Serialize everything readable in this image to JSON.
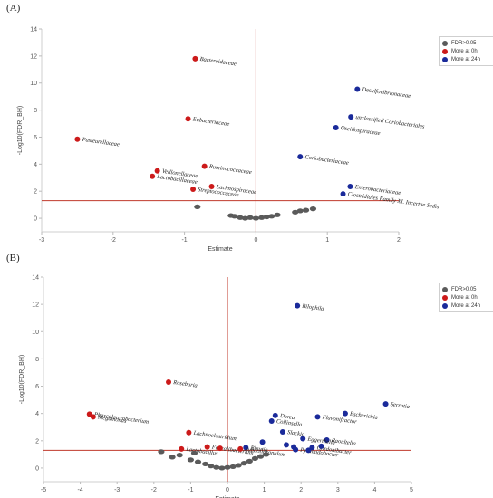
{
  "chart_data": [
    {
      "type": "scatter",
      "panel_label": "(A)",
      "xlabel": "Estimate",
      "ylabel": "-Log10(FDR_BH)",
      "xlim": [
        -3,
        2
      ],
      "ylim": [
        -1,
        14
      ],
      "xticks": [
        -3,
        -2,
        -1,
        0,
        1,
        2
      ],
      "yticks": [
        0,
        2,
        4,
        6,
        8,
        10,
        12,
        14
      ],
      "threshold_y": 1.3,
      "vline_x": 0,
      "legend_position": "top-right",
      "legend": [
        {
          "key": "ns",
          "label": "FDR>0.05",
          "color": "#5a5a5a"
        },
        {
          "key": "h0",
          "label": "More at 0h",
          "color": "#cc1a1a"
        },
        {
          "key": "h24",
          "label": "More at 24h",
          "color": "#1a2a9a"
        }
      ],
      "points": [
        {
          "x": -0.85,
          "y": 11.8,
          "group": "h0",
          "label": "Bacteroidaceae"
        },
        {
          "x": -0.95,
          "y": 7.35,
          "group": "h0",
          "label": "Eubacteriaceae"
        },
        {
          "x": -2.5,
          "y": 5.85,
          "group": "h0",
          "label": "Pasteurellaceae"
        },
        {
          "x": -0.72,
          "y": 3.85,
          "group": "h0",
          "label": "Ruminococcaceae"
        },
        {
          "x": -1.38,
          "y": 3.5,
          "group": "h0",
          "label": "Veillonellaceae"
        },
        {
          "x": -1.45,
          "y": 3.1,
          "group": "h0",
          "label": "Lactobacillaceae"
        },
        {
          "x": -0.62,
          "y": 2.35,
          "group": "h0",
          "label": "Lachnospiraceae"
        },
        {
          "x": -0.88,
          "y": 2.15,
          "group": "h0",
          "label": "Streptococcaceae"
        },
        {
          "x": 1.42,
          "y": 9.55,
          "group": "h24",
          "label": "Desulfovibrionaceae"
        },
        {
          "x": 1.33,
          "y": 7.5,
          "group": "h24",
          "label": "unclassified Coriobacteriales"
        },
        {
          "x": 1.12,
          "y": 6.7,
          "group": "h24",
          "label": "Oscillospiraceae"
        },
        {
          "x": 0.62,
          "y": 4.55,
          "group": "h24",
          "label": "Coriobacteriaceae"
        },
        {
          "x": 1.32,
          "y": 2.35,
          "group": "h24",
          "label": "Enterobacteriaceae"
        },
        {
          "x": 1.22,
          "y": 1.8,
          "group": "h24",
          "label": "Clostridiales Family XI. Incertae Sedis"
        },
        {
          "x": -0.82,
          "y": 0.85,
          "group": "ns",
          "label": ""
        },
        {
          "x": -0.35,
          "y": 0.2,
          "group": "ns",
          "label": ""
        },
        {
          "x": -0.3,
          "y": 0.15,
          "group": "ns",
          "label": ""
        },
        {
          "x": -0.22,
          "y": 0.05,
          "group": "ns",
          "label": ""
        },
        {
          "x": -0.15,
          "y": 0.0,
          "group": "ns",
          "label": ""
        },
        {
          "x": -0.08,
          "y": 0.05,
          "group": "ns",
          "label": ""
        },
        {
          "x": 0.0,
          "y": 0.0,
          "group": "ns",
          "label": ""
        },
        {
          "x": 0.08,
          "y": 0.05,
          "group": "ns",
          "label": ""
        },
        {
          "x": 0.15,
          "y": 0.1,
          "group": "ns",
          "label": ""
        },
        {
          "x": 0.22,
          "y": 0.15,
          "group": "ns",
          "label": ""
        },
        {
          "x": 0.3,
          "y": 0.25,
          "group": "ns",
          "label": ""
        },
        {
          "x": 0.55,
          "y": 0.45,
          "group": "ns",
          "label": ""
        },
        {
          "x": 0.62,
          "y": 0.55,
          "group": "ns",
          "label": ""
        },
        {
          "x": 0.7,
          "y": 0.6,
          "group": "ns",
          "label": ""
        },
        {
          "x": 0.8,
          "y": 0.7,
          "group": "ns",
          "label": ""
        }
      ]
    },
    {
      "type": "scatter",
      "panel_label": "(B)",
      "xlabel": "Estimate",
      "ylabel": "-Log10(FDR_BH)",
      "xlim": [
        -5,
        5
      ],
      "ylim": [
        -1,
        14
      ],
      "xticks": [
        -5,
        -4,
        -3,
        -2,
        -1,
        0,
        1,
        2,
        3,
        4,
        5
      ],
      "yticks": [
        0,
        2,
        4,
        6,
        8,
        10,
        12,
        14
      ],
      "threshold_y": 1.3,
      "vline_x": 0,
      "legend_position": "top-right",
      "legend": [
        {
          "key": "ns",
          "label": "FDR>0.05",
          "color": "#5a5a5a"
        },
        {
          "key": "h0",
          "label": "More at 0h",
          "color": "#cc1a1a"
        },
        {
          "key": "h24",
          "label": "More at 24h",
          "color": "#1a2a9a"
        }
      ],
      "points": [
        {
          "x": 1.9,
          "y": 11.9,
          "group": "h24",
          "label": "Bilophila"
        },
        {
          "x": 4.3,
          "y": 4.7,
          "group": "h24",
          "label": "Serratia"
        },
        {
          "x": 3.2,
          "y": 4.0,
          "group": "h24",
          "label": "Escherichia"
        },
        {
          "x": 1.3,
          "y": 3.85,
          "group": "h24",
          "label": "Dorea"
        },
        {
          "x": 2.45,
          "y": 3.75,
          "group": "h24",
          "label": "Flavonifractor"
        },
        {
          "x": 1.2,
          "y": 3.45,
          "group": "h24",
          "label": "Collinsella"
        },
        {
          "x": 1.5,
          "y": 2.65,
          "group": "h24",
          "label": "Slackia"
        },
        {
          "x": 2.7,
          "y": 2.05,
          "group": "h24",
          "label": "Raoultella"
        },
        {
          "x": 2.05,
          "y": 2.15,
          "group": "h24",
          "label": "Eggerthella"
        },
        {
          "x": 0.95,
          "y": 1.9,
          "group": "h24",
          "label": ""
        },
        {
          "x": 1.6,
          "y": 1.7,
          "group": "h24",
          "label": ""
        },
        {
          "x": 1.8,
          "y": 1.55,
          "group": "h24",
          "label": ""
        },
        {
          "x": 2.3,
          "y": 1.5,
          "group": "h24",
          "label": "Gordonibacter"
        },
        {
          "x": 2.55,
          "y": 1.6,
          "group": "h24",
          "label": ""
        },
        {
          "x": 1.85,
          "y": 1.35,
          "group": "h24",
          "label": "Pyramidobacter"
        },
        {
          "x": 2.2,
          "y": 1.3,
          "group": "h24",
          "label": ""
        },
        {
          "x": 0.5,
          "y": 1.5,
          "group": "h24",
          "label": "Blautia"
        },
        {
          "x": -1.6,
          "y": 6.3,
          "group": "h0",
          "label": "Roseburia"
        },
        {
          "x": -3.75,
          "y": 3.95,
          "group": "h0",
          "label": "Phascolarctobacterium"
        },
        {
          "x": -3.65,
          "y": 3.75,
          "group": "h0",
          "label": "Megamonas"
        },
        {
          "x": -1.05,
          "y": 2.6,
          "group": "h0",
          "label": "Lachnoclostridium"
        },
        {
          "x": -1.25,
          "y": 1.4,
          "group": "h0",
          "label": "Lactobacillus"
        },
        {
          "x": -0.55,
          "y": 1.55,
          "group": "h0",
          "label": "Faecalibacterium"
        },
        {
          "x": -0.2,
          "y": 1.45,
          "group": "h0",
          "label": ""
        },
        {
          "x": 0.35,
          "y": 1.4,
          "group": "h0",
          "label": "Subdoligranulum"
        },
        {
          "x": -1.5,
          "y": 0.8,
          "group": "ns",
          "label": ""
        },
        {
          "x": -1.3,
          "y": 0.95,
          "group": "ns",
          "label": ""
        },
        {
          "x": -1.0,
          "y": 0.6,
          "group": "ns",
          "label": ""
        },
        {
          "x": -0.8,
          "y": 0.45,
          "group": "ns",
          "label": ""
        },
        {
          "x": -0.6,
          "y": 0.3,
          "group": "ns",
          "label": ""
        },
        {
          "x": -0.45,
          "y": 0.15,
          "group": "ns",
          "label": ""
        },
        {
          "x": -0.3,
          "y": 0.05,
          "group": "ns",
          "label": ""
        },
        {
          "x": -0.15,
          "y": 0.0,
          "group": "ns",
          "label": ""
        },
        {
          "x": 0.0,
          "y": 0.05,
          "group": "ns",
          "label": ""
        },
        {
          "x": 0.15,
          "y": 0.1,
          "group": "ns",
          "label": ""
        },
        {
          "x": 0.3,
          "y": 0.2,
          "group": "ns",
          "label": ""
        },
        {
          "x": 0.45,
          "y": 0.35,
          "group": "ns",
          "label": ""
        },
        {
          "x": 0.6,
          "y": 0.5,
          "group": "ns",
          "label": ""
        },
        {
          "x": 0.75,
          "y": 0.7,
          "group": "ns",
          "label": ""
        },
        {
          "x": 0.9,
          "y": 0.85,
          "group": "ns",
          "label": ""
        },
        {
          "x": 1.05,
          "y": 1.0,
          "group": "ns",
          "label": ""
        },
        {
          "x": -1.8,
          "y": 1.2,
          "group": "ns",
          "label": ""
        },
        {
          "x": -0.9,
          "y": 1.1,
          "group": "ns",
          "label": ""
        }
      ]
    }
  ]
}
